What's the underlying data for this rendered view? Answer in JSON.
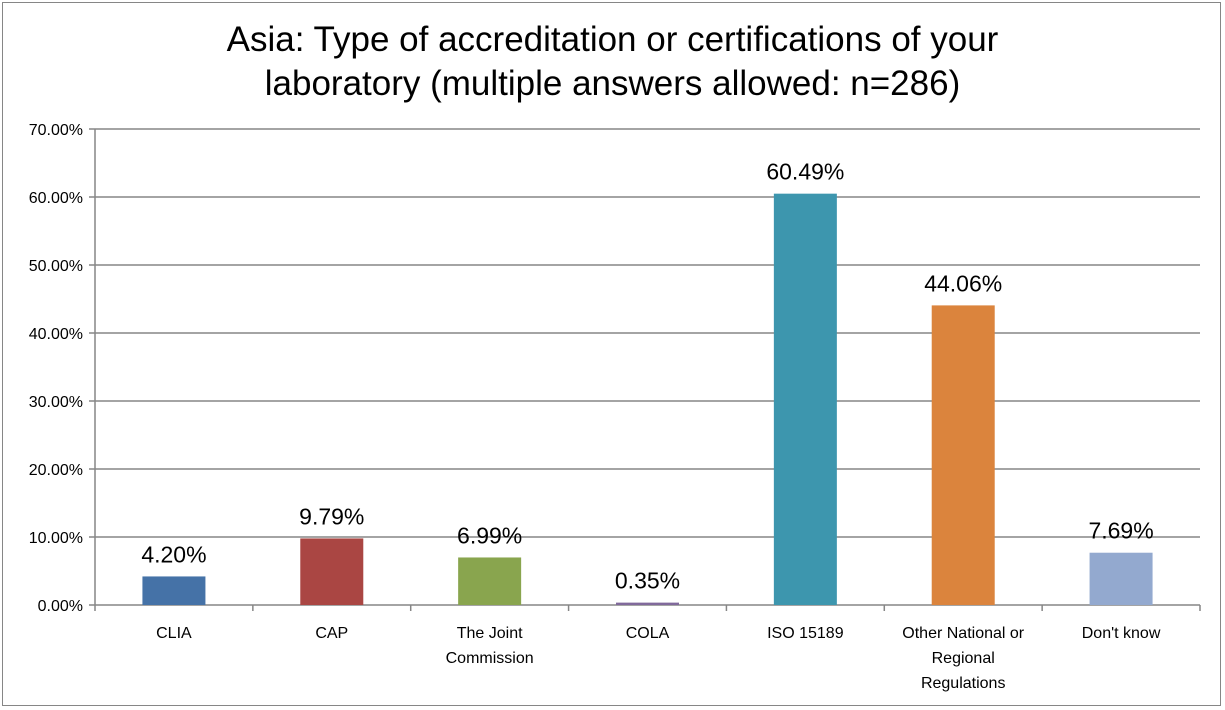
{
  "chart_data": {
    "type": "bar",
    "title": "Asia: Type of accreditation or certifications of your laboratory (multiple answers allowed: n=286)",
    "title_lines": [
      "Asia: Type of accreditation or certifications of your",
      "laboratory (multiple answers allowed: n=286)"
    ],
    "categories": [
      "CLIA",
      "CAP",
      "The Joint Commission",
      "COLA",
      "ISO 15189",
      "Other National or Regional Regulations",
      "Don't know"
    ],
    "category_lines": [
      [
        "CLIA"
      ],
      [
        "CAP"
      ],
      [
        "The Joint",
        "Commission"
      ],
      [
        "COLA"
      ],
      [
        "ISO 15189"
      ],
      [
        "Other National or",
        "Regional",
        "Regulations"
      ],
      [
        "Don't know"
      ]
    ],
    "values": [
      4.2,
      9.79,
      6.99,
      0.35,
      60.49,
      44.06,
      7.69
    ],
    "data_labels": [
      "4.20%",
      "9.79%",
      "6.99%",
      "0.35%",
      "60.49%",
      "44.06%",
      "7.69%"
    ],
    "colors": [
      "#4572A7",
      "#AA4643",
      "#89A54E",
      "#80699B",
      "#3D96AE",
      "#DB843D",
      "#93A9CF"
    ],
    "ylim": [
      0,
      70
    ],
    "yticks": [
      "0.00%",
      "10.00%",
      "20.00%",
      "30.00%",
      "40.00%",
      "50.00%",
      "60.00%",
      "70.00%"
    ],
    "grid": true,
    "legend": "none",
    "xlabel": "",
    "ylabel": ""
  }
}
